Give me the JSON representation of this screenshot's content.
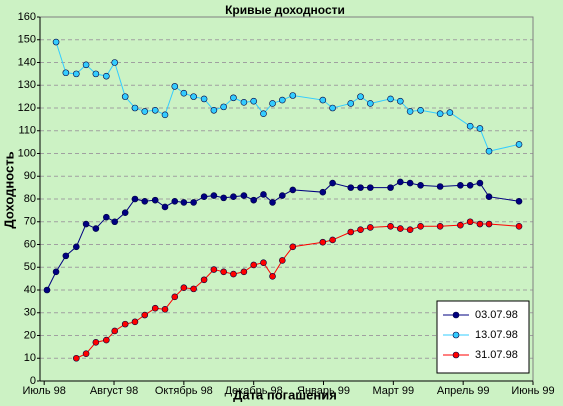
{
  "chart_data": {
    "type": "line",
    "title": "Кривые доходности",
    "xlabel": "Дата погашения",
    "ylabel": "Доходность",
    "xlim": [
      -0.06,
      7
    ],
    "xticks": [
      {
        "value": 0,
        "label": "Июль 98"
      },
      {
        "value": 1,
        "label": "Август 98"
      },
      {
        "value": 2,
        "label": "Октябрь 98"
      },
      {
        "value": 3,
        "label": "Декабрь 98"
      },
      {
        "value": 4,
        "label": "Январь 99"
      },
      {
        "value": 5,
        "label": "Март 99"
      },
      {
        "value": 6,
        "label": "Апрель 99"
      },
      {
        "value": 7,
        "label": "Июнь 99"
      }
    ],
    "ylim": [
      0,
      160
    ],
    "yticks": [
      0,
      10,
      20,
      30,
      40,
      50,
      60,
      70,
      80,
      90,
      100,
      110,
      120,
      130,
      140,
      150,
      160
    ],
    "grid": true,
    "legend": "lower right",
    "series": [
      {
        "name": "03.07.98",
        "color": "#000080",
        "x": [
          0.04,
          0.17,
          0.31,
          0.46,
          0.6,
          0.74,
          0.89,
          1.01,
          1.16,
          1.3,
          1.44,
          1.59,
          1.73,
          1.87,
          2,
          2.14,
          2.29,
          2.43,
          2.57,
          2.71,
          2.86,
          3,
          3.14,
          3.27,
          3.41,
          3.56,
          3.99,
          4.13,
          4.39,
          4.53,
          4.67,
          4.96,
          5.1,
          5.24,
          5.39,
          5.67,
          5.96,
          6.1,
          6.24,
          6.37,
          6.8
        ],
        "values": [
          40,
          48,
          55,
          59,
          69,
          67,
          72,
          70,
          74,
          80,
          79,
          79.5,
          76.5,
          79,
          78.5,
          78.5,
          81,
          81.5,
          80.5,
          81,
          81.5,
          79.5,
          82,
          78.5,
          81.5,
          84,
          83,
          87,
          85,
          85,
          85,
          85,
          87.5,
          87,
          86,
          85.5,
          86,
          86,
          87,
          81,
          79
        ]
      },
      {
        "name": "13.07.98",
        "color": "#33ccff",
        "x": [
          0.17,
          0.31,
          0.46,
          0.6,
          0.74,
          0.89,
          1.01,
          1.16,
          1.3,
          1.44,
          1.59,
          1.73,
          1.87,
          2,
          2.14,
          2.29,
          2.43,
          2.57,
          2.71,
          2.86,
          3,
          3.14,
          3.27,
          3.41,
          3.56,
          3.99,
          4.13,
          4.39,
          4.53,
          4.67,
          4.96,
          5.1,
          5.24,
          5.39,
          5.67,
          5.81,
          6.1,
          6.24,
          6.37,
          6.8
        ],
        "values": [
          149,
          135.5,
          135,
          139,
          135,
          134,
          140,
          125,
          120,
          118.5,
          119,
          117,
          129.5,
          126.5,
          125,
          124,
          119,
          120.5,
          124.5,
          122.5,
          123,
          117.5,
          122,
          123.5,
          125.5,
          123.5,
          120,
          122,
          125,
          122,
          124,
          123,
          118.5,
          119,
          117.5,
          118,
          112,
          111,
          101,
          104
        ]
      },
      {
        "name": "31.07.98",
        "color": "#ff0000",
        "x": [
          0.46,
          0.6,
          0.74,
          0.89,
          1.01,
          1.16,
          1.3,
          1.44,
          1.59,
          1.73,
          1.87,
          2,
          2.14,
          2.29,
          2.43,
          2.57,
          2.71,
          2.86,
          3,
          3.14,
          3.27,
          3.41,
          3.56,
          3.99,
          4.13,
          4.39,
          4.53,
          4.67,
          4.96,
          5.1,
          5.24,
          5.39,
          5.67,
          5.96,
          6.1,
          6.24,
          6.37,
          6.8
        ],
        "values": [
          10,
          12,
          17,
          18,
          22,
          25,
          26,
          29,
          32,
          31.5,
          37,
          41,
          40.5,
          44.5,
          49,
          48,
          47,
          48,
          51,
          52,
          46,
          53,
          59,
          61,
          62,
          65.5,
          66.5,
          67.5,
          68,
          67,
          66.5,
          68,
          68,
          68.5,
          70,
          69,
          69,
          68
        ]
      }
    ]
  }
}
